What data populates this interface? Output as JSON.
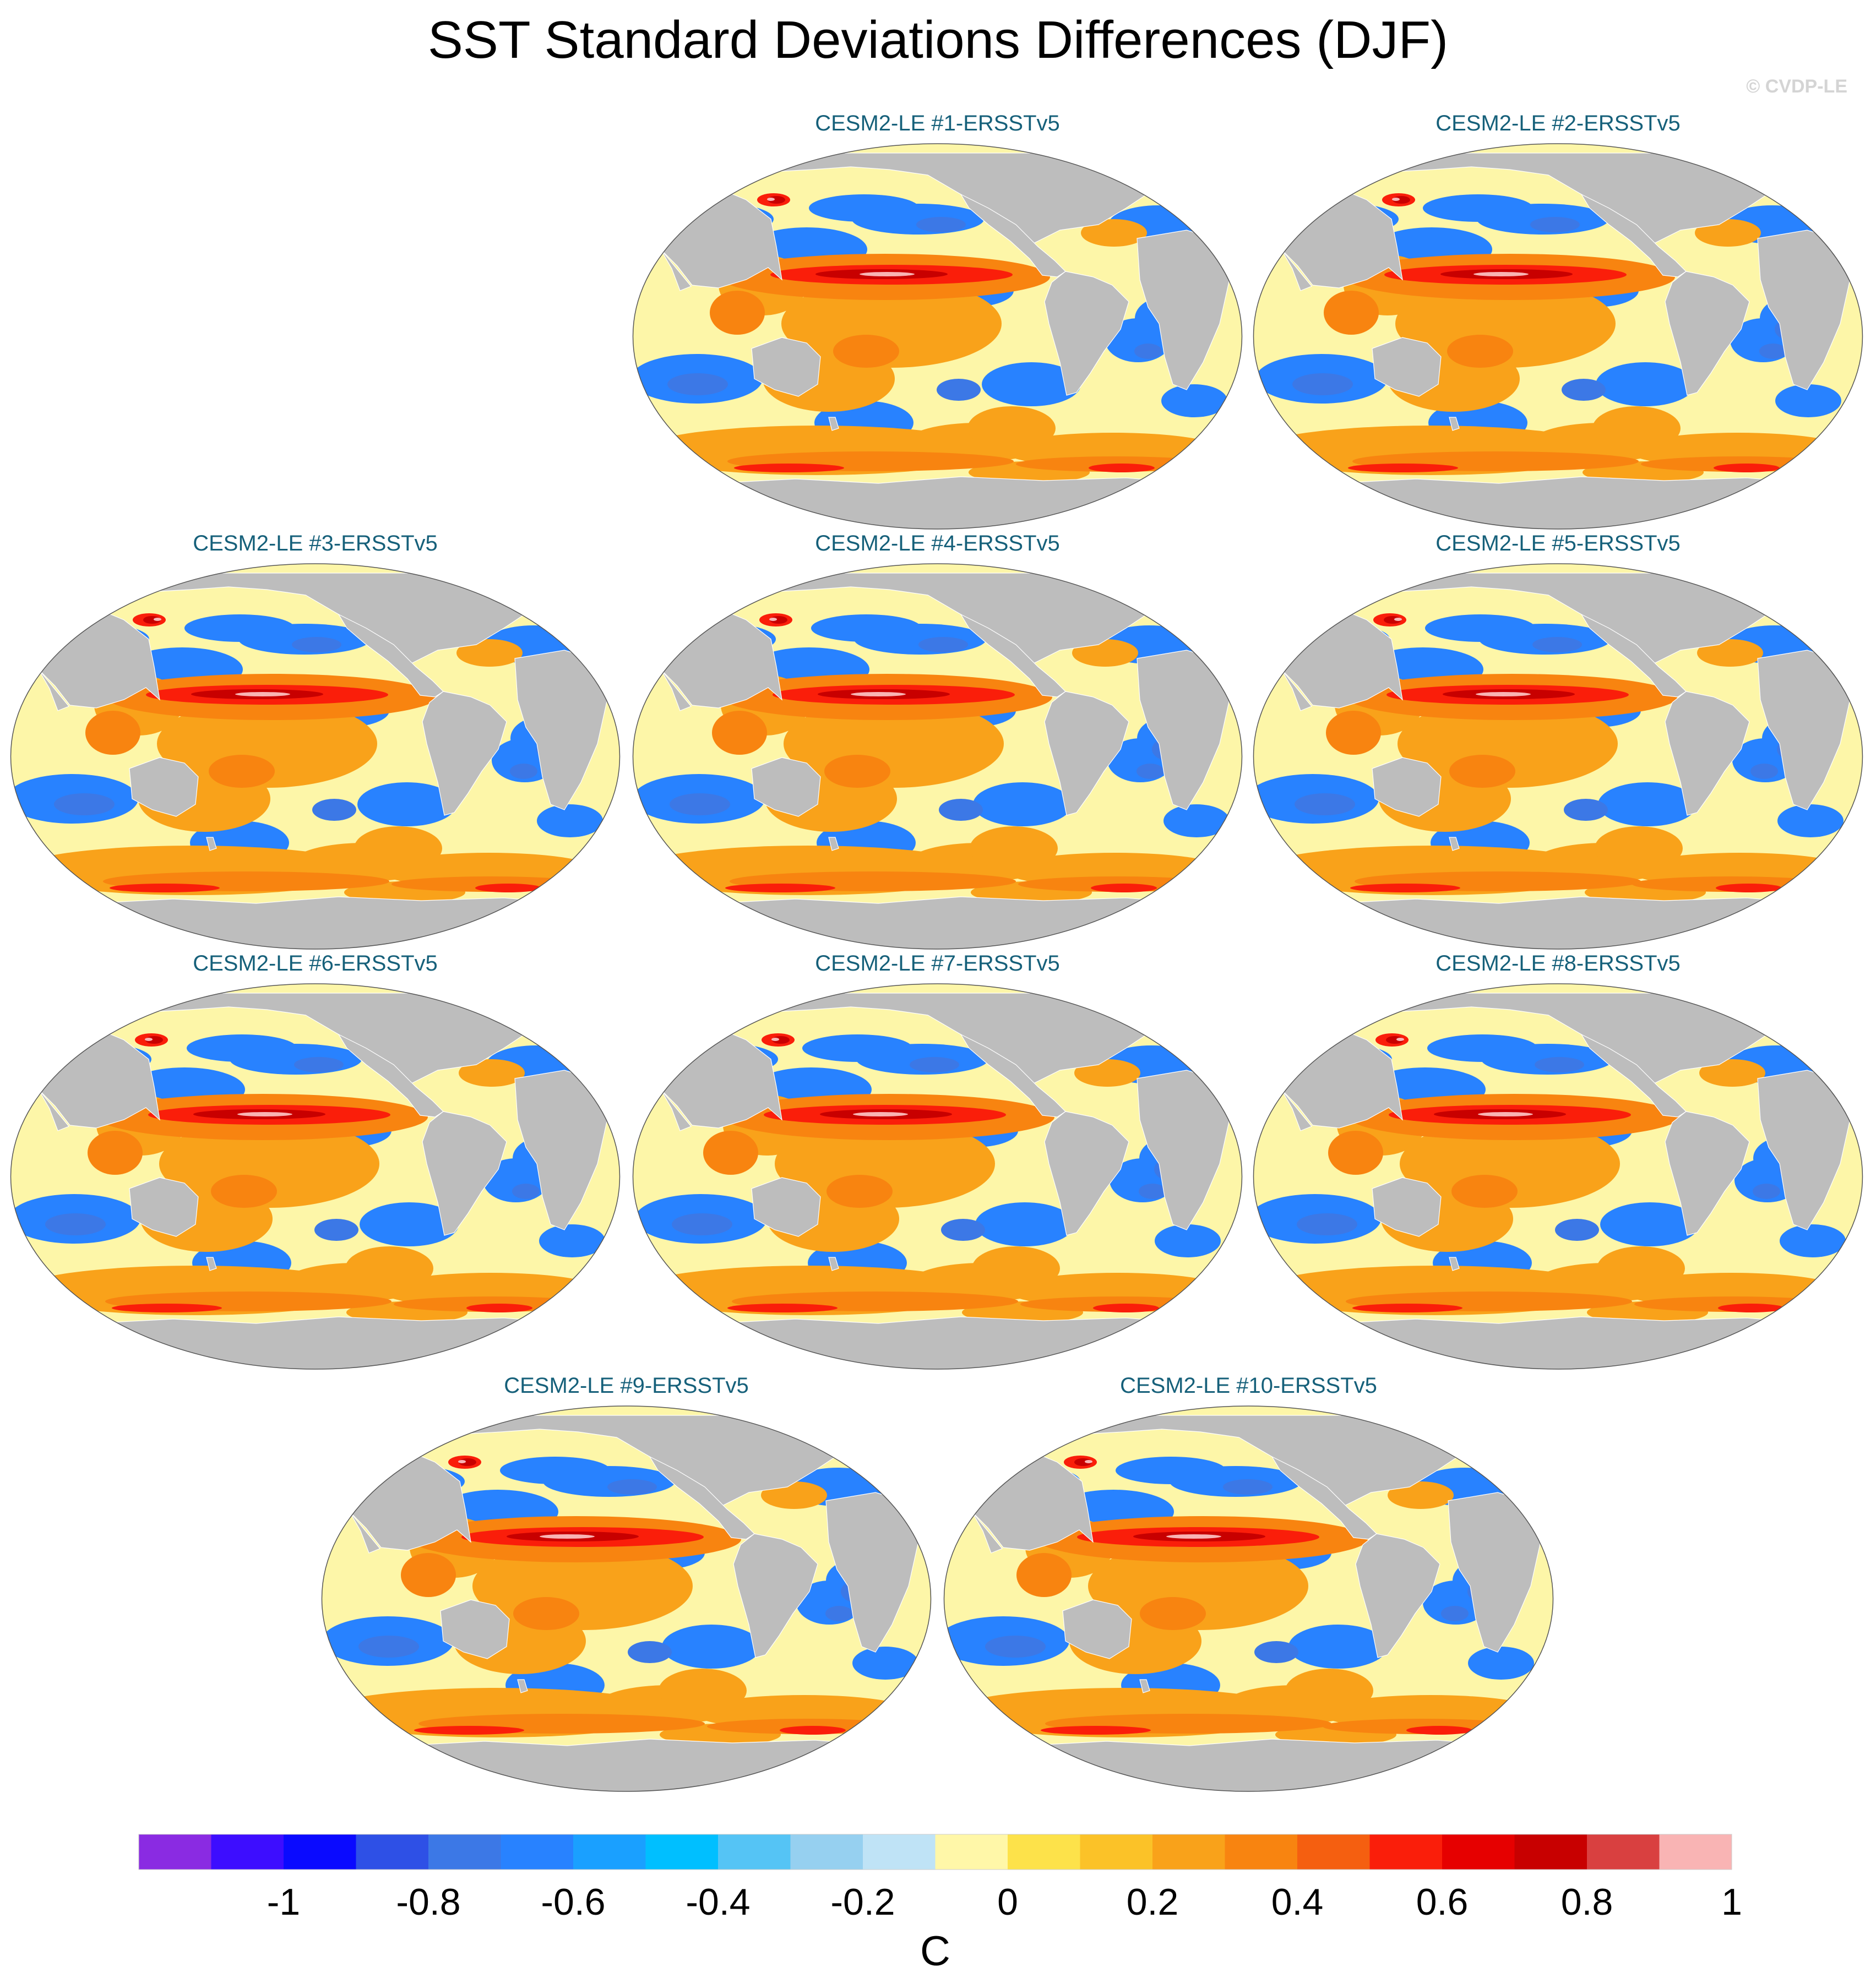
{
  "title": "SST Standard Deviations Differences (DJF)",
  "copyright": "© CVDP-LE",
  "colors": {
    "land": "#bdbdbd",
    "background_ocean": "#fdf6a8",
    "panel_title": "#16607a"
  },
  "panels": [
    {
      "title": "CESM2-LE #1-ERSSTv5"
    },
    {
      "title": "CESM2-LE #2-ERSSTv5"
    },
    {
      "title": "CESM2-LE #3-ERSSTv5"
    },
    {
      "title": "CESM2-LE #4-ERSSTv5"
    },
    {
      "title": "CESM2-LE #5-ERSSTv5"
    },
    {
      "title": "CESM2-LE #6-ERSSTv5"
    },
    {
      "title": "CESM2-LE #7-ERSSTv5"
    },
    {
      "title": "CESM2-LE #8-ERSSTv5"
    },
    {
      "title": "CESM2-LE #9-ERSSTv5"
    },
    {
      "title": "CESM2-LE #10-ERSSTv5"
    }
  ],
  "colorbar": {
    "unit": "C",
    "colors": [
      "#8a2be2",
      "#3d0dff",
      "#0a0aff",
      "#2e50e6",
      "#3c78e6",
      "#2882ff",
      "#1aa0ff",
      "#00bfff",
      "#55c4f5",
      "#96d0f0",
      "#bfe3f6",
      "#fff7a8",
      "#fde24a",
      "#fbc228",
      "#f9a21a",
      "#f88410",
      "#f55f10",
      "#fa1e0a",
      "#e60000",
      "#c80000",
      "#d94040",
      "#f9b4b4"
    ],
    "tick_labels": [
      "-1",
      "-0.8",
      "-0.6",
      "-0.4",
      "-0.2",
      "0",
      "0.2",
      "0.4",
      "0.6",
      "0.8",
      "1"
    ]
  }
}
